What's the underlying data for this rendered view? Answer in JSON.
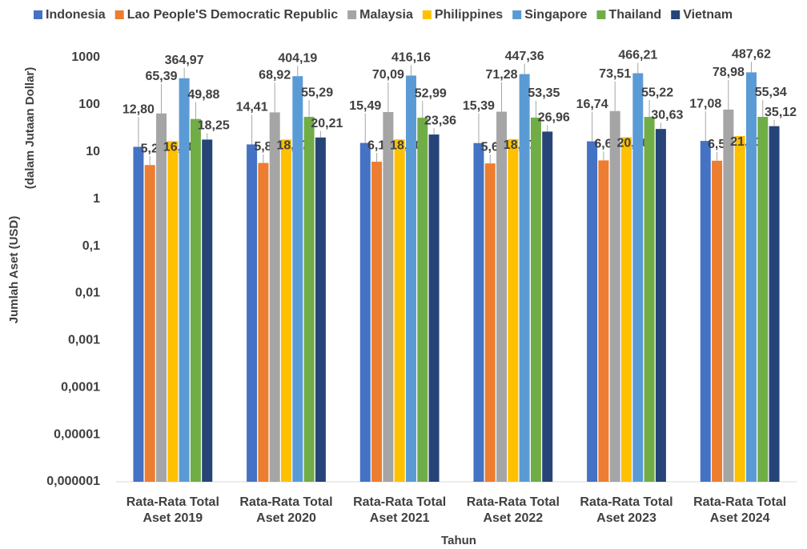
{
  "chart_data": {
    "type": "bar",
    "log_scale": true,
    "grid": false,
    "legend": "top",
    "x_label": "Tahun",
    "y_label": [
      "Jumlah Aset (USD)",
      "(dalam Jutaan Dollar)"
    ],
    "categories": [
      "Rata-Rata Total Aset 2019",
      "Rata-Rata Total Aset 2020",
      "Rata-Rata Total Aset 2021",
      "Rata-Rata Total Aset 2022",
      "Rata-Rata Total Aset 2023",
      "Rata-Rata Total Aset 2024"
    ],
    "ylim": [
      1e-06,
      1000
    ],
    "yticks": [
      {
        "value": 1e-06,
        "label": "0,000001"
      },
      {
        "value": 1e-05,
        "label": "0,00001"
      },
      {
        "value": 0.0001,
        "label": "0,0001"
      },
      {
        "value": 0.001,
        "label": "0,001"
      },
      {
        "value": 0.01,
        "label": "0,01"
      },
      {
        "value": 0.1,
        "label": "0,1"
      },
      1,
      10,
      100,
      1000
    ],
    "series": [
      {
        "name": "Indonesia",
        "color": "#4472c4",
        "values": [
          12.8,
          14.41,
          15.49,
          15.39,
          16.74,
          17.08
        ],
        "value_labels": [
          "12,80",
          "14,41",
          "15,49",
          "15,39",
          "16,74",
          "17,08"
        ]
      },
      {
        "name": "Lao People'S Democratic Republic",
        "color": "#ed7d31",
        "values": [
          5.26,
          5.82,
          6.18,
          5.69,
          6.6,
          6.5
        ],
        "value_labels": [
          "5,26",
          "5,82",
          "6,18",
          "5,69",
          "6,60",
          "6,50"
        ]
      },
      {
        "name": "Malaysia",
        "color": "#a5a5a5",
        "values": [
          65.39,
          68.92,
          70.09,
          71.28,
          73.51,
          78.98
        ],
        "value_labels": [
          "65,39",
          "68,92",
          "70,09",
          "71,28",
          "73,51",
          "78,98"
        ]
      },
      {
        "name": "Philippines",
        "color": "#ffc000",
        "values": [
          16.88,
          18.27,
          18.4,
          18.67,
          20.46,
          21.71
        ],
        "value_labels": [
          "16,88",
          "18,27",
          "18,40",
          "18,67",
          "20,46",
          "21,71"
        ]
      },
      {
        "name": "Singapore",
        "color": "#5b9bd5",
        "values": [
          364.97,
          404.19,
          416.16,
          447.36,
          466.21,
          487.62
        ],
        "value_labels": [
          "364,97",
          "404,19",
          "416,16",
          "447,36",
          "466,21",
          "487,62"
        ]
      },
      {
        "name": "Thailand",
        "color": "#70ad47",
        "values": [
          49.88,
          55.29,
          52.99,
          53.35,
          55.22,
          55.34
        ],
        "value_labels": [
          "49,88",
          "55,29",
          "52,99",
          "53,35",
          "55,22",
          "55,34"
        ]
      },
      {
        "name": "Vietnam",
        "color": "#264478",
        "values": [
          18.25,
          20.21,
          23.36,
          26.96,
          30.63,
          35.12
        ],
        "value_labels": [
          "18,25",
          "20,21",
          "23,36",
          "26,96",
          "30,63",
          "35,12"
        ]
      }
    ]
  }
}
